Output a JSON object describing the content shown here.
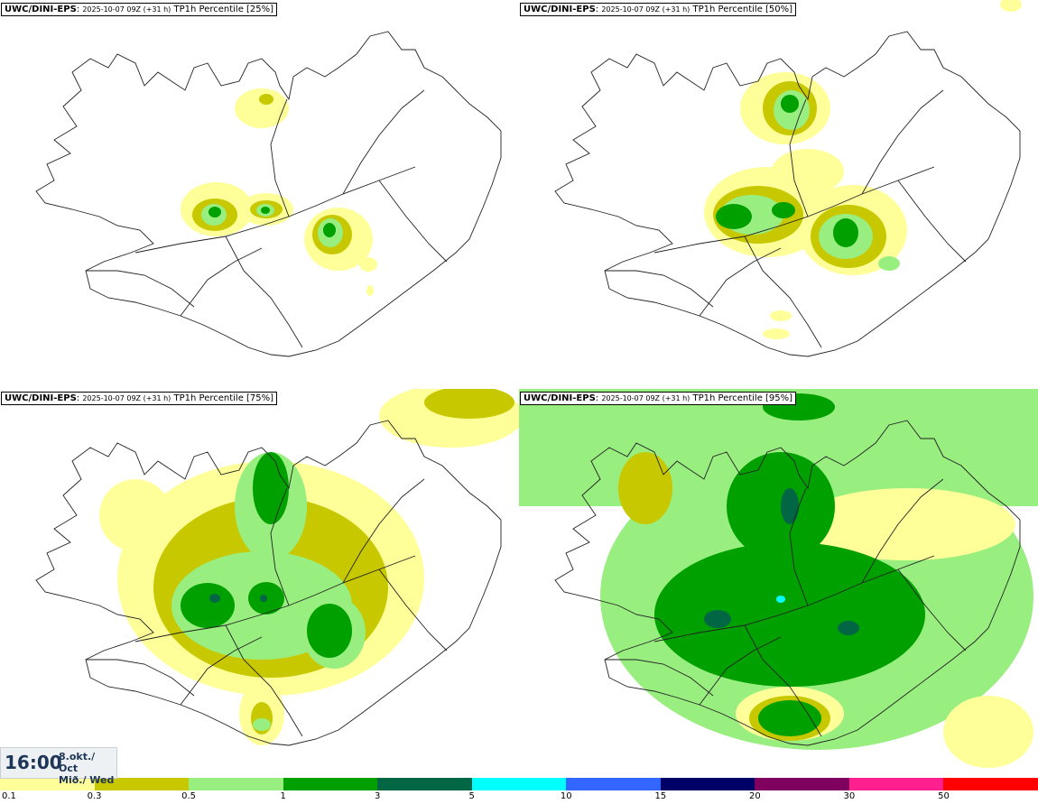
{
  "panels": [
    {
      "model": "UWC/DINI-EPS",
      "run": "2025-10-07 09Z (+31 h)",
      "field": "TP1h Percentile [25%]"
    },
    {
      "model": "UWC/DINI-EPS",
      "run": "2025-10-07 09Z (+31 h)",
      "field": "TP1h Percentile [50%]"
    },
    {
      "model": "UWC/DINI-EPS",
      "run": "2025-10-07 09Z (+31 h)",
      "field": "TP1h Percentile [75%]"
    },
    {
      "model": "UWC/DINI-EPS",
      "run": "2025-10-07 09Z (+31 h)",
      "field": "TP1h Percentile [95%]"
    }
  ],
  "valid_time": {
    "time": "16:00",
    "date": "8.okt./ Oct",
    "day": "Mið./ Wed"
  },
  "legend": {
    "colors": [
      "#ffff99",
      "#c8c800",
      "#99ee80",
      "#00a000",
      "#006644",
      "#00ffff",
      "#3366ff",
      "#000066",
      "#800060",
      "#ff2090",
      "#ff0000"
    ],
    "ticks": [
      "0.1",
      "0.3",
      "0.5",
      "1",
      "3",
      "5",
      "10",
      "15",
      "20",
      "30",
      "50"
    ]
  }
}
